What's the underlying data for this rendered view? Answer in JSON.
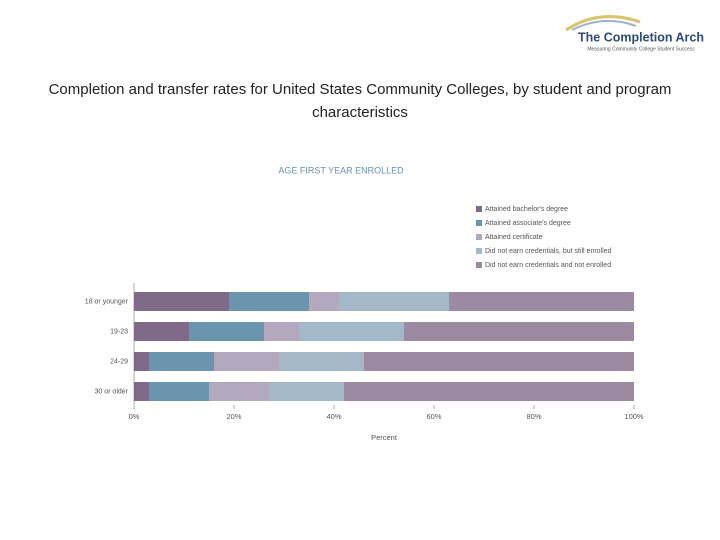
{
  "logo": {
    "title": "The Completion Arch",
    "subtitle": "Measuring Community College Student Success"
  },
  "slide_title": "Completion and transfer rates for United States Community Colleges, by student and program characteristics",
  "chart_data": {
    "type": "stacked_bar_horizontal",
    "title": "AGE FIRST YEAR ENROLLED",
    "x_label": "Percent",
    "categories": [
      "18 or younger",
      "19-23",
      "24-29",
      "30 or older"
    ],
    "series": [
      {
        "name": "Attained bachelor's degree",
        "color": "#7f6a89",
        "values": [
          19,
          11,
          3,
          3
        ]
      },
      {
        "name": "Attained associate's degree",
        "color": "#6a95ad",
        "values": [
          16,
          15,
          13,
          12
        ]
      },
      {
        "name": "Attained certificate",
        "color": "#b4a8bf",
        "values": [
          6,
          7,
          13,
          12
        ]
      },
      {
        "name": "Did not earn credentials, but still enrolled",
        "color": "#a3b8c9",
        "values": [
          22,
          21,
          17,
          15
        ]
      },
      {
        "name": "Did not earn credentials and not enrolled",
        "color": "#9b8aa2",
        "values": [
          37,
          46,
          54,
          58
        ]
      }
    ],
    "xlim": [
      0,
      100
    ],
    "xticks": [
      {
        "value": 0,
        "label": "0%"
      },
      {
        "value": 20,
        "label": "20%"
      },
      {
        "value": 40,
        "label": "40%"
      },
      {
        "value": 60,
        "label": "60%"
      },
      {
        "value": 80,
        "label": "80%"
      },
      {
        "value": 100,
        "label": "100%"
      }
    ],
    "legend_position": "upper right"
  }
}
